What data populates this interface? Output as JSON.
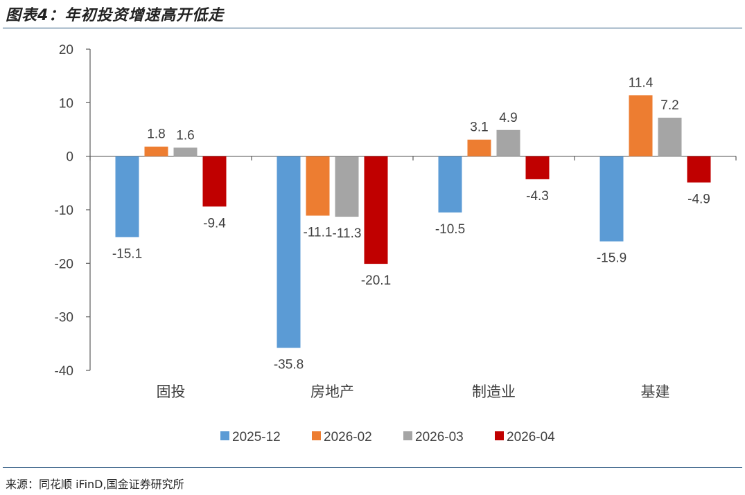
{
  "title": "图表4：年初投资增速高开低走",
  "source": "来源：同花顺 iFinD,国金证券研究所",
  "chart_data": {
    "type": "bar",
    "categories": [
      "固投",
      "房地产",
      "制造业",
      "基建"
    ],
    "series": [
      {
        "name": "2025-12",
        "color": "#5b9bd5",
        "values": [
          -15.1,
          -35.8,
          -10.5,
          -15.9
        ]
      },
      {
        "name": "2026-02",
        "color": "#ed7d31",
        "values": [
          1.8,
          -11.1,
          3.1,
          11.4
        ]
      },
      {
        "name": "2026-03",
        "color": "#a5a5a5",
        "values": [
          1.6,
          -11.3,
          4.9,
          7.2
        ]
      },
      {
        "name": "2026-04",
        "color": "#c00000",
        "values": [
          -9.4,
          -20.1,
          -4.3,
          -4.9
        ]
      }
    ],
    "data_labels": [
      [
        "-15.1",
        "-35.8",
        "-10.5",
        "-15.9"
      ],
      [
        "1.8",
        "-11.1",
        "3.1",
        "11.4"
      ],
      [
        "1.6",
        "-11.3",
        "4.9",
        "7.2"
      ],
      [
        "-9.4",
        "-20.1",
        "-4.3",
        "-4.9"
      ]
    ],
    "ylim": [
      -40,
      20
    ],
    "yticks": [
      "20",
      "10",
      "0",
      "-10",
      "-20",
      "-30",
      "-40"
    ],
    "ytick_values": [
      20,
      10,
      0,
      -10,
      -20,
      -30,
      -40
    ],
    "grid": false,
    "legend": "bottom"
  }
}
